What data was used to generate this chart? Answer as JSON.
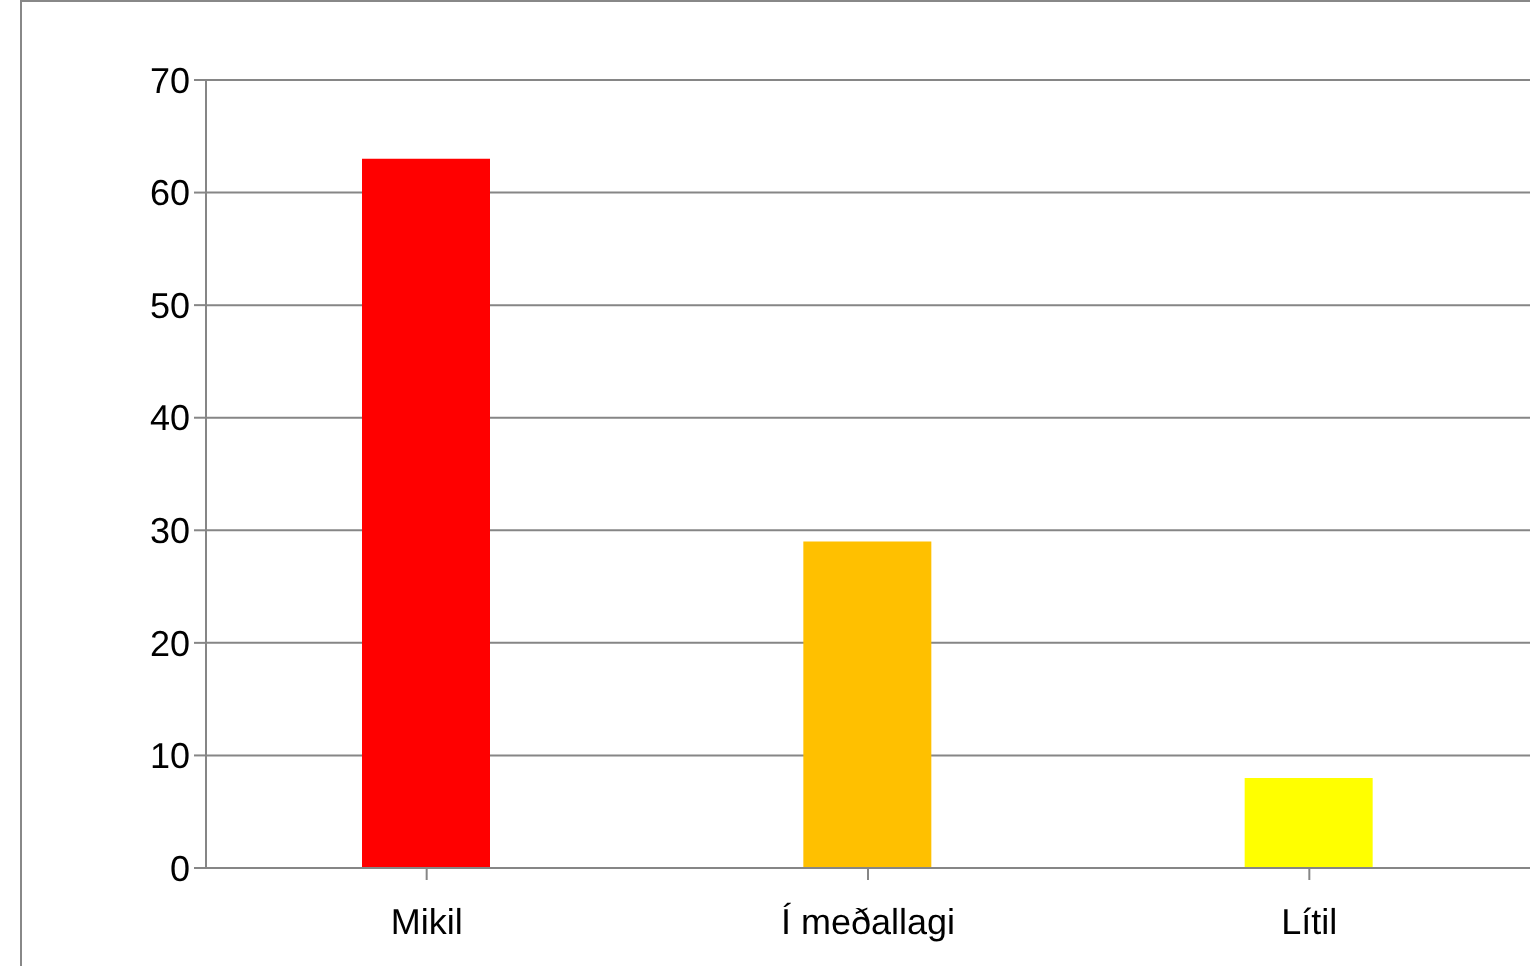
{
  "chart_data": {
    "type": "bar",
    "categories": [
      "Mikil",
      "Í meðallagi",
      "Lítil"
    ],
    "values": [
      63,
      29,
      8
    ],
    "colors": [
      "#ff0000",
      "#ffc000",
      "#ffff00"
    ],
    "ylim": [
      0,
      70
    ],
    "yticks": [
      0,
      10,
      20,
      30,
      40,
      50,
      60,
      70
    ],
    "grid": "y"
  }
}
